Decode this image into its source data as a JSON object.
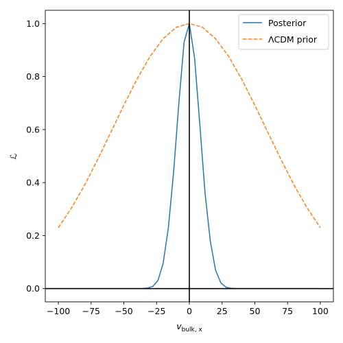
{
  "chart_data": {
    "type": "line",
    "title": "",
    "xlabel_main": "v",
    "xlabel_sub": "bulk, x",
    "ylabel": "ℒ",
    "xlim": [
      -110,
      110
    ],
    "ylim": [
      -0.05,
      1.05
    ],
    "xticks": [
      -100,
      -75,
      -50,
      -25,
      0,
      25,
      50,
      75,
      100
    ],
    "xtick_labels": [
      "−100",
      "−75",
      "−50",
      "−25",
      "0",
      "25",
      "50",
      "75",
      "100"
    ],
    "yticks": [
      0.0,
      0.2,
      0.4,
      0.6,
      0.8,
      1.0
    ],
    "ytick_labels": [
      "0.0",
      "0.2",
      "0.4",
      "0.6",
      "0.8",
      "1.0"
    ],
    "reference_lines": {
      "vertical_x": 0,
      "horizontal_y": 0
    },
    "legend": {
      "placement": "top-right"
    },
    "series": [
      {
        "name": "Posterior",
        "color": "#1f77b4",
        "style": "solid",
        "x": [
          -110,
          -40,
          -36,
          -32,
          -28,
          -24,
          -20,
          -16,
          -12,
          -8,
          -4,
          0,
          4,
          8,
          12,
          16,
          20,
          24,
          28,
          32,
          36,
          40,
          100
        ],
        "y": [
          0.0,
          0.0,
          0.0,
          0.002,
          0.008,
          0.03,
          0.095,
          0.23,
          0.44,
          0.7,
          0.93,
          1.0,
          0.87,
          0.62,
          0.36,
          0.18,
          0.07,
          0.022,
          0.005,
          0.001,
          0.0,
          0.0,
          0.0
        ]
      },
      {
        "name": "ΛCDM prior",
        "color": "#ff7f0e",
        "style": "dashed",
        "x": [
          -100,
          -90,
          -80,
          -70,
          -60,
          -50,
          -40,
          -30,
          -20,
          -10,
          0,
          10,
          20,
          30,
          40,
          50,
          60,
          70,
          80,
          90,
          100
        ],
        "y": [
          0.23,
          0.304,
          0.39,
          0.487,
          0.589,
          0.692,
          0.79,
          0.876,
          0.943,
          0.986,
          1.0,
          0.986,
          0.943,
          0.876,
          0.79,
          0.692,
          0.589,
          0.487,
          0.39,
          0.304,
          0.23
        ]
      }
    ]
  }
}
